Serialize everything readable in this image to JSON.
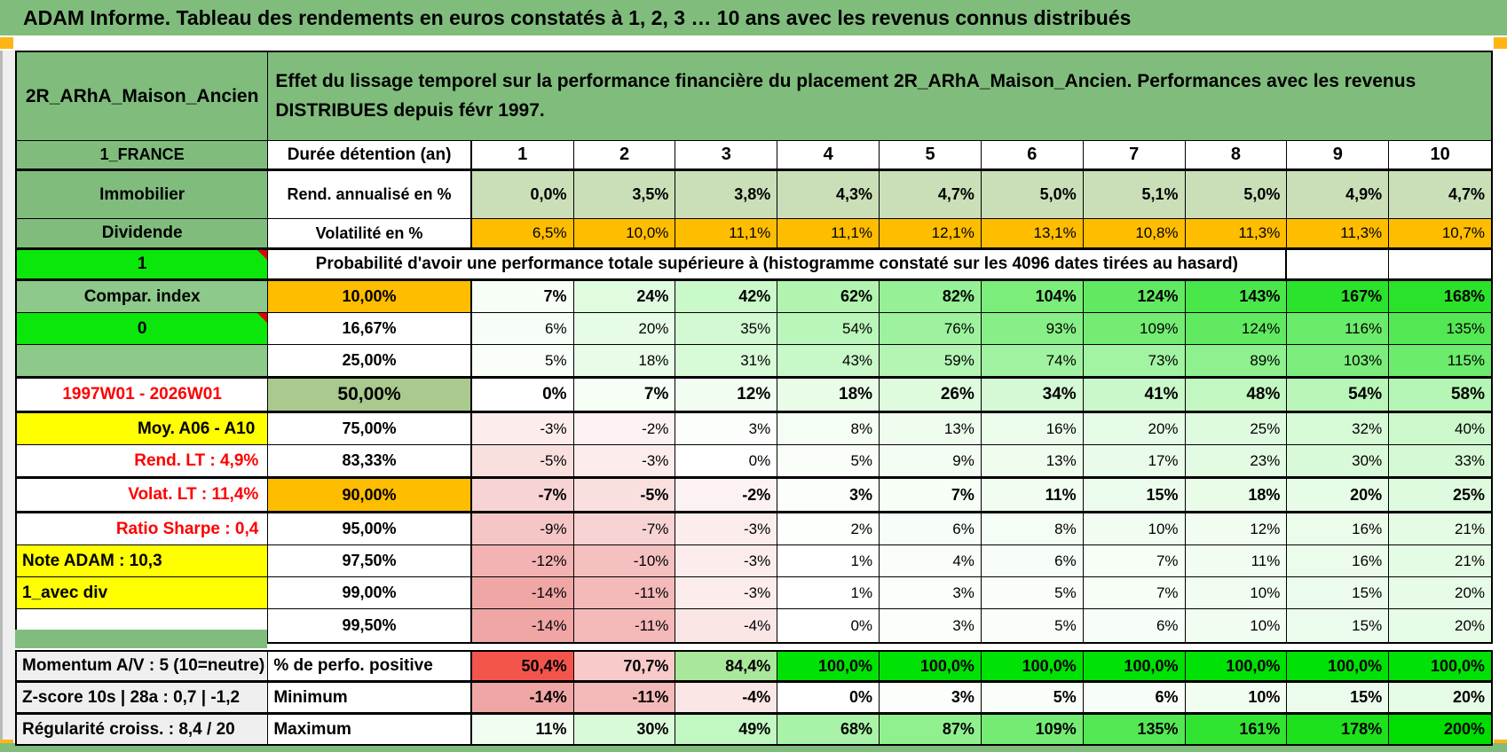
{
  "app": {
    "title": "ADAM Informe. Tableau des rendements en euros constatés à 1, 2, 3 … 10 ans avec les revenus connus distribués"
  },
  "sheet": {
    "placement_name": "2R_ARhA_Maison_Ancien",
    "description": "Effet du lissage temporel sur la performance financière du placement 2R_ARhA_Maison_Ancien. Performances avec les revenus DISTRIBUES depuis févr 1997.",
    "duration_header": {
      "left": "1_FRANCE",
      "label": "Durée détention (an)",
      "columns": [
        "1",
        "2",
        "3",
        "4",
        "5",
        "6",
        "7",
        "8",
        "9",
        "10"
      ]
    },
    "rows": [
      {
        "id": "rend",
        "left": "Immobilier",
        "label": "Rend. annualisé en %",
        "values": [
          "0,0%",
          "3,5%",
          "3,8%",
          "4,3%",
          "4,7%",
          "5,0%",
          "5,1%",
          "5,0%",
          "4,9%",
          "4,7%"
        ]
      },
      {
        "id": "volat",
        "left": "Dividende",
        "label": "Volatilité en %",
        "values": [
          "6,5%",
          "10,0%",
          "11,1%",
          "11,1%",
          "12,1%",
          "13,1%",
          "10,8%",
          "11,3%",
          "11,3%",
          "10,7%"
        ]
      },
      {
        "id": "proba",
        "left": "1",
        "merged_label": "Probabilité d'avoir une performance totale supérieure à (histogramme constaté sur les 4096 dates tirées au hasard)"
      },
      {
        "id": "p10",
        "left": "Compar. index",
        "label": "10,00%",
        "values": [
          7,
          24,
          42,
          62,
          82,
          104,
          124,
          143,
          167,
          168
        ]
      },
      {
        "id": "p16",
        "left": "0",
        "label": "16,67%",
        "values": [
          6,
          20,
          35,
          54,
          76,
          93,
          109,
          124,
          116,
          135
        ]
      },
      {
        "id": "p25",
        "left": "",
        "label": "25,00%",
        "values": [
          5,
          18,
          31,
          43,
          59,
          74,
          73,
          89,
          103,
          115
        ]
      },
      {
        "id": "p50",
        "left": "1997W01 - 2026W01",
        "label": "50,00%",
        "values": [
          0,
          7,
          12,
          18,
          26,
          34,
          41,
          48,
          54,
          58
        ]
      },
      {
        "id": "p75",
        "left": "Moy. A06 - A10",
        "label": "75,00%",
        "values": [
          -3,
          -2,
          3,
          8,
          13,
          16,
          20,
          25,
          32,
          40
        ]
      },
      {
        "id": "p83",
        "left": "Rend. LT :   4,9%",
        "label": "83,33%",
        "values": [
          -5,
          -3,
          0,
          5,
          9,
          13,
          17,
          23,
          30,
          33
        ]
      },
      {
        "id": "p90",
        "left": "Volat. LT :   11,4%",
        "label": "90,00%",
        "values": [
          -7,
          -5,
          -2,
          3,
          7,
          11,
          15,
          18,
          20,
          25
        ]
      },
      {
        "id": "p95",
        "left": "Ratio Sharpe :   0,4",
        "label": "95,00%",
        "values": [
          -9,
          -7,
          -3,
          2,
          6,
          8,
          10,
          12,
          16,
          21
        ]
      },
      {
        "id": "p97",
        "left": "Note ADAM : 10,3",
        "label": "97,50%",
        "values": [
          -12,
          -10,
          -3,
          1,
          4,
          6,
          7,
          11,
          16,
          21
        ]
      },
      {
        "id": "p99",
        "left": "1_avec div",
        "label": "99,00%",
        "values": [
          -14,
          -11,
          -3,
          1,
          3,
          5,
          7,
          10,
          15,
          20
        ]
      },
      {
        "id": "p995",
        "left": "",
        "label": "99,50%",
        "values": [
          -14,
          -11,
          -4,
          0,
          3,
          5,
          6,
          10,
          15,
          20
        ]
      }
    ],
    "summary_rows": [
      {
        "id": "perfo",
        "left": "Momentum A/V : 5 (10=neutre)",
        "label": "% de perfo. positive",
        "values": [
          "50,4%",
          "70,7%",
          "84,4%",
          "100,0%",
          "100,0%",
          "100,0%",
          "100,0%",
          "100,0%",
          "100,0%",
          "100,0%"
        ],
        "colors": [
          "#f3544c",
          "#f9caca",
          "#a9e79a",
          "#00e105",
          "#00e105",
          "#00e105",
          "#00e105",
          "#00e105",
          "#00e105",
          "#00e105"
        ]
      },
      {
        "id": "min",
        "left": "Z-score 10s | 28a : 0,7 | -1,2",
        "label": "Minimum",
        "values": [
          -14,
          -11,
          -4,
          0,
          3,
          5,
          6,
          10,
          15,
          20
        ]
      },
      {
        "id": "max",
        "left": "Régularité croiss. : 8,4 / 20",
        "label": "Maximum",
        "values": [
          11,
          30,
          49,
          68,
          87,
          109,
          135,
          161,
          178,
          200
        ]
      }
    ],
    "colors": {
      "header_green": "#80bd7d",
      "sage_green": "#8cc98a",
      "vivid_green": "#0be70b",
      "orange": "#ffbd00",
      "yellow": "#ffff00",
      "rend_row_green": "#cadfb8",
      "p50_label_green": "#a9c98e",
      "red_text": "#fe0000",
      "red_cell": "#f3544c",
      "bright_green_cell": "#00e105",
      "gray_label": "#efefef",
      "positive_scale_end": "#00dd00",
      "negative_scale_end": "#f0a0a0",
      "marker_orange": "#ffb515"
    },
    "icons": {
      "comment_indicator": "red-corner-triangle",
      "print_area_marker": "orange-square"
    }
  }
}
